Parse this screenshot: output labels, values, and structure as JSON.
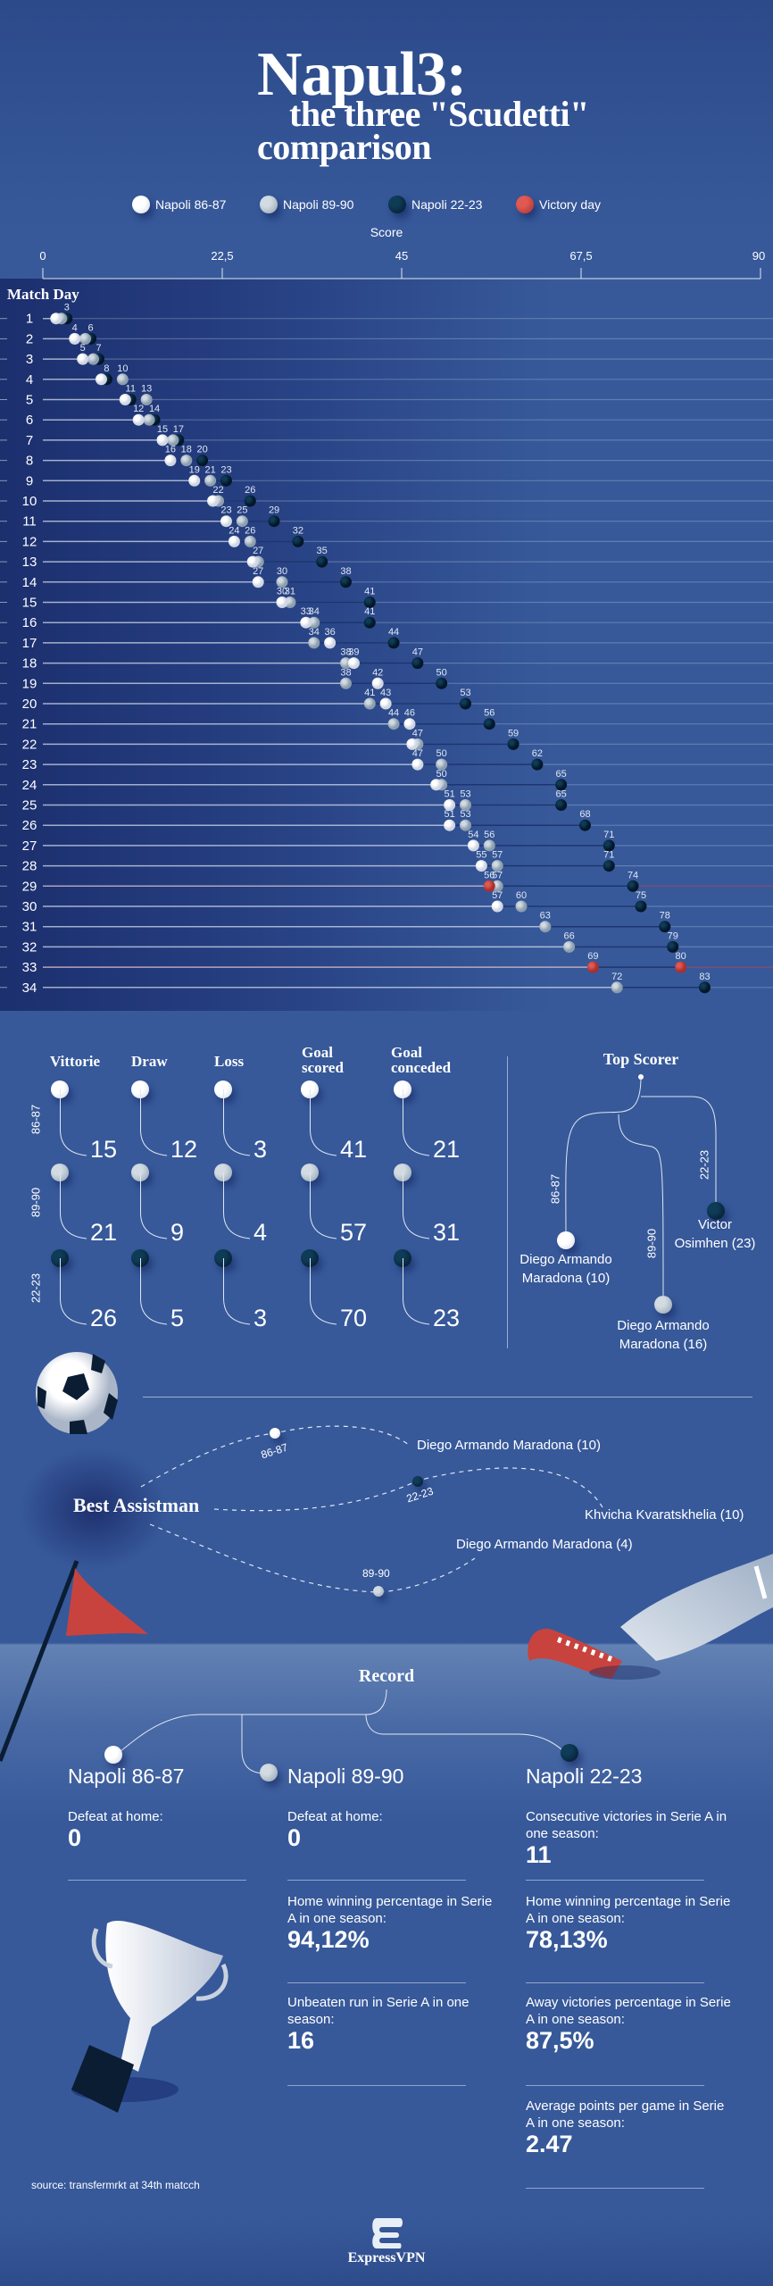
{
  "title": {
    "line1": "Napul3:",
    "line2": "the three \"Scudetti\"",
    "line3": "comparison"
  },
  "legend": [
    {
      "label": "Napoli 86-87",
      "style": "white"
    },
    {
      "label": "Napoli 89-90",
      "style": "grey"
    },
    {
      "label": "Napoli 22-23",
      "style": "dark"
    },
    {
      "label": "Victory day",
      "style": "red"
    }
  ],
  "colors": {
    "background": "#37599a",
    "napoli_86_87": "#ffffff",
    "napoli_89_90": "#b3c1cc",
    "napoli_22_23": "#082a40",
    "victory_day": "#d0443f"
  },
  "chart_data": {
    "type": "scatter",
    "xlabel": "Score",
    "ylabel": "Match Day",
    "xlim": [
      0,
      90
    ],
    "xticks": [
      "0",
      "22,5",
      "45",
      "67,5",
      "90"
    ],
    "xtick_values": [
      0,
      22.5,
      45,
      67.5,
      90
    ],
    "categories": [
      1,
      2,
      3,
      4,
      5,
      6,
      7,
      8,
      9,
      10,
      11,
      12,
      13,
      14,
      15,
      16,
      17,
      18,
      19,
      20,
      21,
      22,
      23,
      24,
      25,
      26,
      27,
      28,
      29,
      30,
      31,
      32,
      33,
      34
    ],
    "series": [
      {
        "name": "Napoli 86-87",
        "style": "white",
        "victory_day": 29,
        "values": [
          3,
          4,
          5,
          8,
          11,
          12,
          15,
          16,
          19,
          22,
          23,
          24,
          27,
          27,
          30,
          33,
          36,
          39,
          42,
          43,
          46,
          47,
          47,
          50,
          51,
          51,
          54,
          55,
          56,
          57,
          null,
          null,
          null,
          null
        ]
      },
      {
        "name": "Napoli 89-90",
        "style": "grey",
        "victory_day": 33,
        "values": [
          3,
          6,
          7,
          10,
          13,
          14,
          17,
          18,
          21,
          22,
          25,
          26,
          27,
          30,
          31,
          34,
          34,
          38,
          38,
          41,
          44,
          47,
          50,
          50,
          53,
          53,
          56,
          57,
          57,
          60,
          63,
          66,
          69,
          72
        ]
      },
      {
        "name": "Napoli 22-23",
        "style": "dark",
        "victory_day": 33,
        "values": [
          3,
          6,
          7,
          8,
          11,
          14,
          17,
          20,
          23,
          26,
          29,
          32,
          35,
          38,
          41,
          41,
          44,
          47,
          50,
          53,
          56,
          59,
          62,
          65,
          65,
          68,
          71,
          71,
          74,
          75,
          78,
          79,
          80,
          83
        ]
      }
    ],
    "grid": true
  },
  "stats": {
    "headers": [
      [
        "Vittorie"
      ],
      [
        "Draw"
      ],
      [
        "Loss"
      ],
      [
        "Goal",
        "scored"
      ],
      [
        "Goal",
        "conceded"
      ]
    ],
    "rows": [
      {
        "season": "86-87",
        "style": "white",
        "values": [
          "15",
          "12",
          "3",
          "41",
          "21"
        ]
      },
      {
        "season": "89-90",
        "style": "grey",
        "values": [
          "21",
          "9",
          "4",
          "57",
          "31"
        ]
      },
      {
        "season": "22-23",
        "style": "dark",
        "values": [
          "26",
          "5",
          "3",
          "70",
          "23"
        ]
      }
    ]
  },
  "top_scorer": {
    "title": "Top Scorer",
    "entries": [
      {
        "season": "86-87",
        "style": "white",
        "name_l1": "Diego Armando",
        "name_l2": "Maradona (10)"
      },
      {
        "season": "89-90",
        "style": "grey",
        "name_l1": "Diego Armando",
        "name_l2": "Maradona (16)"
      },
      {
        "season": "22-23",
        "style": "dark",
        "name_l1": "Victor",
        "name_l2": "Osimhen (23)"
      }
    ]
  },
  "best_assist": {
    "title": "Best Assistman",
    "entries": [
      {
        "season": "86-87",
        "style": "white",
        "name": "Diego Armando Maradona (10)"
      },
      {
        "season": "22-23",
        "style": "dark",
        "name": "Khvicha Kvaratskhelia (10)"
      },
      {
        "season": "89-90",
        "style": "grey",
        "name": "Diego Armando Maradona (4)"
      }
    ]
  },
  "record": {
    "title": "Record",
    "columns": [
      {
        "team": "Napoli 86-87",
        "style": "white",
        "items": [
          {
            "label": "Defeat at home:",
            "value": "0"
          }
        ]
      },
      {
        "team": "Napoli 89-90",
        "style": "grey",
        "items": [
          {
            "label": "Defeat at home:",
            "value": "0"
          },
          {
            "label": "Home winning percentage in Serie A in one season:",
            "value": "94,12%"
          },
          {
            "label": "Unbeaten run in Serie A in one season:",
            "value": "16"
          }
        ]
      },
      {
        "team": "Napoli 22-23",
        "style": "dark",
        "items": [
          {
            "label": "Consecutive victories in Serie A in one season:",
            "value": "11"
          },
          {
            "label": "Home winning percentage in Serie A in one season:",
            "value": "78,13%"
          },
          {
            "label": "Away victories percentage in Serie A in one season:",
            "value": "87,5%"
          },
          {
            "label": "Average points per game in Serie A in one season:",
            "value": "2.47"
          }
        ]
      }
    ]
  },
  "source": "source: transfermrkt at 34th matcch",
  "brand": "ExpressVPN",
  "icons": [
    "soccer-ball-icon",
    "corner-flag-icon",
    "football-boot-icon",
    "trophy-icon",
    "expressvpn-logo-icon"
  ]
}
